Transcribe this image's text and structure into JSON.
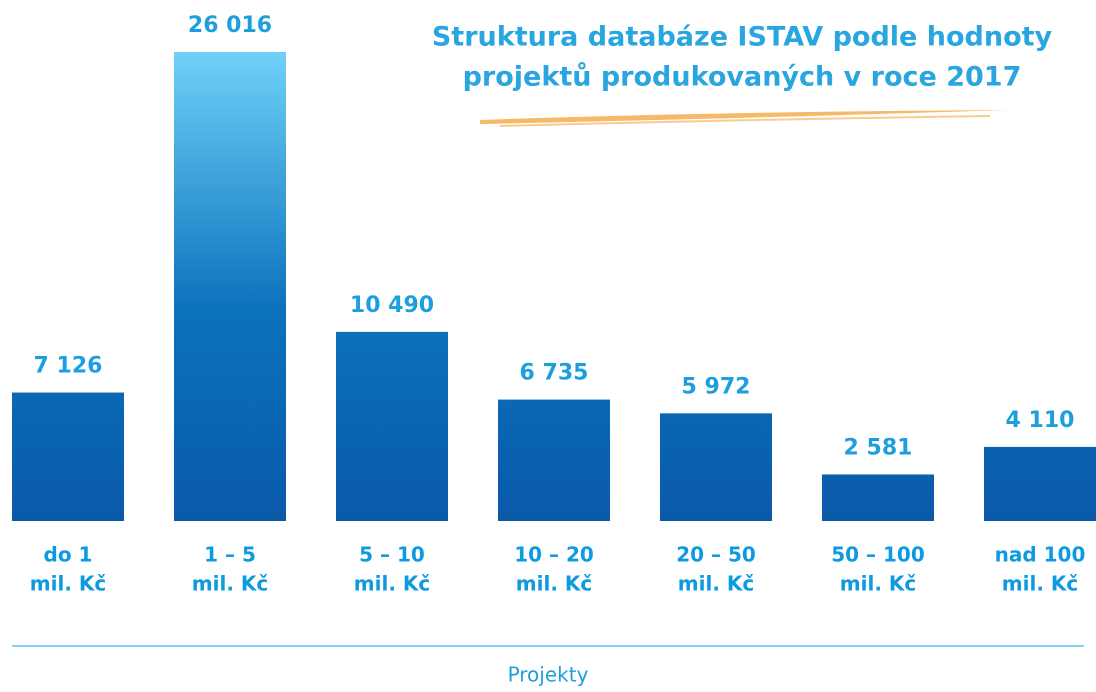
{
  "chart_data": {
    "type": "bar",
    "title": [
      "Struktura databáze ISTAV podle hodnoty",
      "projektů produkovaných v roce 2017"
    ],
    "x_label": "Projekty",
    "categories": [
      [
        "do 1",
        "mil. Kč"
      ],
      [
        "1 – 5",
        "mil. Kč"
      ],
      [
        "5 – 10",
        "mil. Kč"
      ],
      [
        "10 – 20",
        "mil. Kč"
      ],
      [
        "20 – 50",
        "mil. Kč"
      ],
      [
        "50 – 100",
        "mil. Kč"
      ],
      [
        "nad 100",
        "mil. Kč"
      ]
    ],
    "values": [
      7126,
      26016,
      10490,
      6735,
      5972,
      2581,
      4110
    ],
    "value_labels": [
      "7 126",
      "26 016",
      "10 490",
      "6 735",
      "5 972",
      "2 581",
      "4 110"
    ],
    "color": [
      "#6fd1f7",
      "#0a5aa8"
    ]
  }
}
